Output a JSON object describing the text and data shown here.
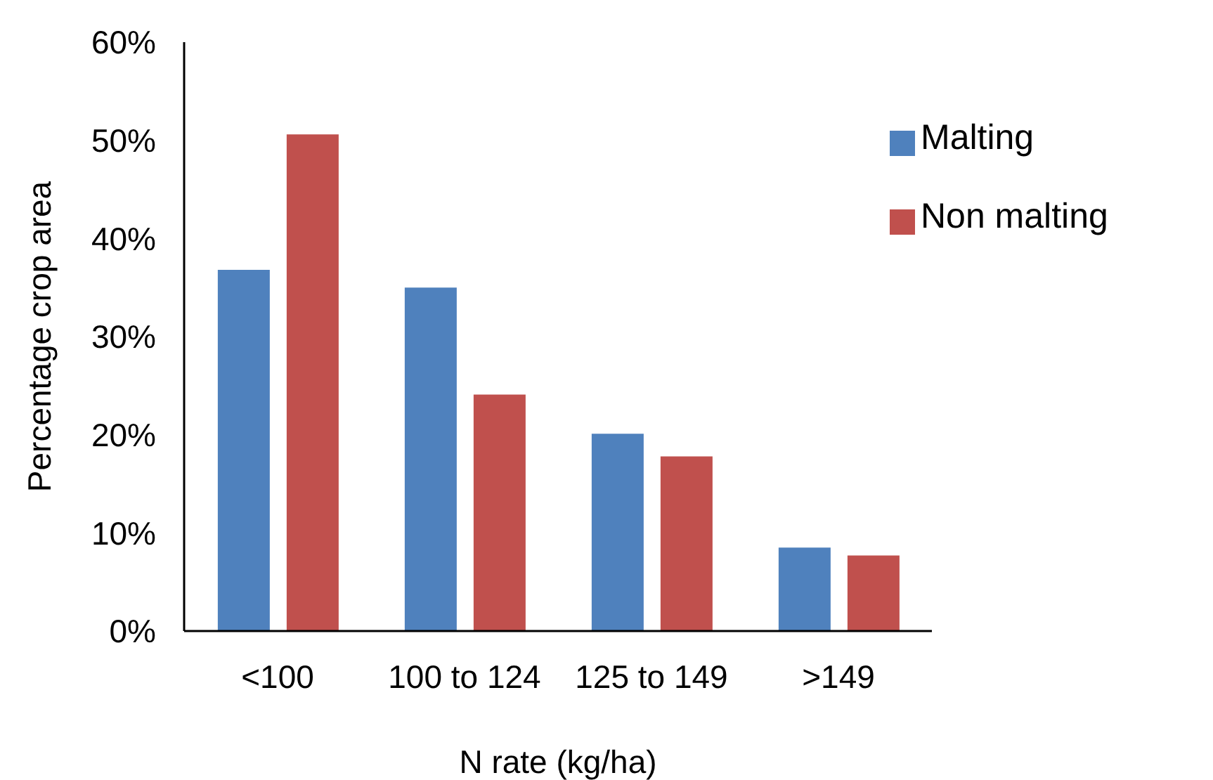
{
  "chart_data": {
    "type": "bar",
    "xlabel": "N rate (kg/ha)",
    "ylabel": "Percentage crop area",
    "categories": [
      "<100",
      "100 to 124",
      "125 to 149",
      ">149"
    ],
    "series": [
      {
        "name": "Malting",
        "color": "#4f81bd",
        "values": [
          36.8,
          35.0,
          20.1,
          8.5
        ]
      },
      {
        "name": "Non malting",
        "color": "#c0504d",
        "values": [
          50.6,
          24.1,
          17.8,
          7.7
        ]
      }
    ],
    "ylim": [
      0,
      60
    ],
    "yticks": [
      {
        "value": 0,
        "label": "0%"
      },
      {
        "value": 10,
        "label": "10%"
      },
      {
        "value": 20,
        "label": "20%"
      },
      {
        "value": 30,
        "label": "30%"
      },
      {
        "value": 40,
        "label": "40%"
      },
      {
        "value": 50,
        "label": "50%"
      },
      {
        "value": 60,
        "label": "60%"
      }
    ],
    "grid": false,
    "legend": "top right"
  }
}
